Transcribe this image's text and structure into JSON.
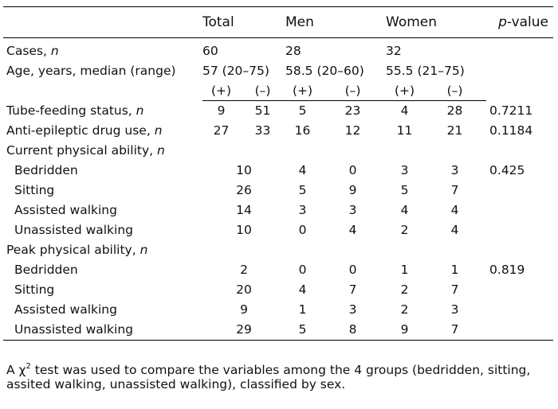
{
  "header": {
    "total": "Total",
    "men": "Men",
    "women": "Women",
    "p_prefix": "p",
    "p_suffix": "-value"
  },
  "cases": {
    "label": "Cases, ",
    "unit": "n",
    "total": "60",
    "men": "28",
    "women": "32"
  },
  "age": {
    "label": "Age, years, median (range)",
    "total": "57 (20–75)",
    "men": "58.5 (20–60)",
    "women": "55.5 (21–75)"
  },
  "signs": {
    "plus": "(+)",
    "minus": "(–)"
  },
  "rows": [
    {
      "label": "Tube-feeding status, ",
      "unit": "n",
      "c": [
        "9",
        "51",
        "5",
        "23",
        "4",
        "28"
      ],
      "p": "0.7211"
    },
    {
      "label": "Anti-epileptic drug use, ",
      "unit": "n",
      "c": [
        "27",
        "33",
        "16",
        "12",
        "11",
        "21"
      ],
      "p": "0.1184"
    }
  ],
  "current": {
    "label": "Current physical ability, ",
    "unit": "n",
    "rows": [
      {
        "label": "Bedridden",
        "total": "10",
        "c": [
          "4",
          "0",
          "3",
          "3"
        ],
        "p": "0.425"
      },
      {
        "label": "Sitting",
        "total": "26",
        "c": [
          "5",
          "9",
          "5",
          "7"
        ],
        "p": ""
      },
      {
        "label": "Assisted walking",
        "total": "14",
        "c": [
          "3",
          "3",
          "4",
          "4"
        ],
        "p": ""
      },
      {
        "label": "Unassisted walking",
        "total": "10",
        "c": [
          "0",
          "4",
          "2",
          "4"
        ],
        "p": ""
      }
    ]
  },
  "peak": {
    "label": "Peak physical ability, ",
    "unit": "n",
    "rows": [
      {
        "label": "Bedridden",
        "total": "2",
        "c": [
          "0",
          "0",
          "1",
          "1"
        ],
        "p": "0.819"
      },
      {
        "label": "Sitting",
        "total": "20",
        "c": [
          "4",
          "7",
          "2",
          "7"
        ],
        "p": ""
      },
      {
        "label": "Assisted walking",
        "total": "9",
        "c": [
          "1",
          "3",
          "2",
          "3"
        ],
        "p": ""
      },
      {
        "label": "Unassisted walking",
        "total": "29",
        "c": [
          "5",
          "8",
          "9",
          "7"
        ],
        "p": ""
      }
    ]
  },
  "footnote": {
    "prefix": "A ",
    "chi": "χ",
    "sup": "2",
    "text": " test was used to compare the variables among the 4 groups (bedridden, sitting, assited walking, unassisted walking), classified by sex."
  }
}
